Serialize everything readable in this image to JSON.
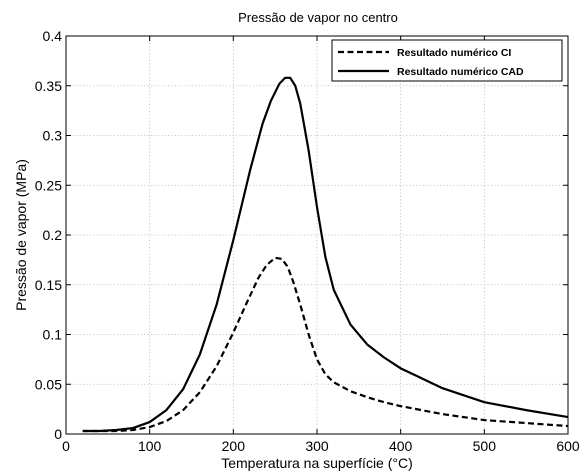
{
  "chart_data": {
    "type": "line",
    "title": "Pressão de vapor no centro",
    "xlabel": "Temperatura na superfície (°C)",
    "ylabel": "Pressão de vapor (MPa)",
    "xlim": [
      0,
      600
    ],
    "ylim": [
      0,
      0.4
    ],
    "x_ticks": [
      0,
      100,
      200,
      300,
      400,
      500,
      600
    ],
    "x_tick_labels": [
      "0",
      "100",
      "200",
      "300",
      "400",
      "500",
      "600"
    ],
    "y_ticks": [
      0,
      0.05,
      0.1,
      0.15,
      0.2,
      0.25,
      0.3,
      0.35,
      0.4
    ],
    "y_tick_labels": [
      "0",
      "0.05",
      "0.1",
      "0.15",
      "0.2",
      "0.25",
      "0.3",
      "0.35",
      "0.4"
    ],
    "grid": true,
    "legend_position": "top-right",
    "series": [
      {
        "name": "Resultado numérico CI",
        "style": "dashed",
        "color": "#000000",
        "x": [
          20,
          40,
          60,
          80,
          100,
          120,
          140,
          160,
          180,
          200,
          215,
          230,
          240,
          250,
          258,
          265,
          272,
          280,
          290,
          300,
          310,
          320,
          340,
          360,
          380,
          400,
          450,
          500,
          550,
          600
        ],
        "y": [
          0.003,
          0.003,
          0.003,
          0.004,
          0.007,
          0.013,
          0.024,
          0.042,
          0.068,
          0.102,
          0.13,
          0.157,
          0.17,
          0.177,
          0.176,
          0.168,
          0.152,
          0.13,
          0.1,
          0.075,
          0.06,
          0.052,
          0.043,
          0.037,
          0.032,
          0.028,
          0.02,
          0.014,
          0.011,
          0.008
        ]
      },
      {
        "name": "Resultado numérico CAD",
        "style": "solid",
        "color": "#000000",
        "x": [
          20,
          40,
          60,
          80,
          100,
          120,
          140,
          160,
          180,
          200,
          220,
          235,
          245,
          255,
          262,
          268,
          274,
          280,
          290,
          300,
          310,
          320,
          340,
          360,
          380,
          400,
          420,
          450,
          500,
          550,
          600
        ],
        "y": [
          0.003,
          0.003,
          0.004,
          0.006,
          0.012,
          0.024,
          0.045,
          0.08,
          0.13,
          0.195,
          0.265,
          0.312,
          0.335,
          0.352,
          0.358,
          0.358,
          0.35,
          0.332,
          0.285,
          0.228,
          0.178,
          0.145,
          0.11,
          0.09,
          0.077,
          0.066,
          0.058,
          0.046,
          0.032,
          0.024,
          0.017
        ]
      }
    ]
  }
}
